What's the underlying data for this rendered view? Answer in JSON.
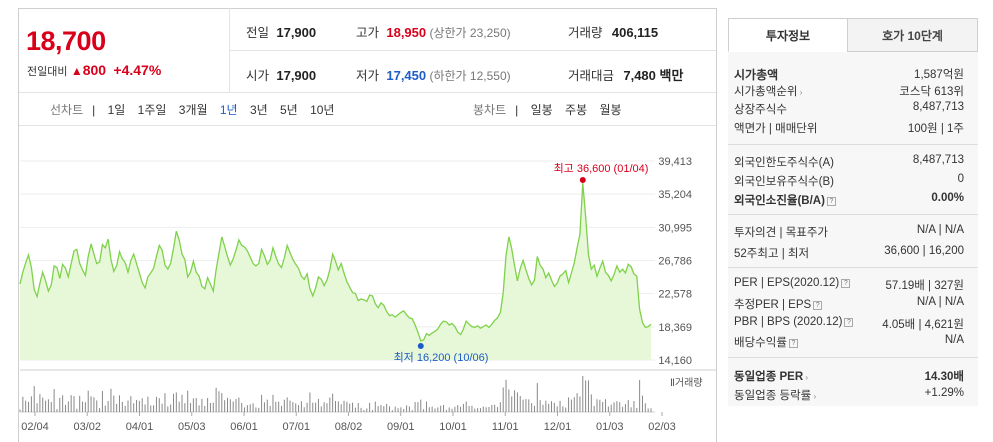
{
  "price": {
    "current": "18,700",
    "change_label": "전일대비",
    "change_arrow": "▲",
    "change": "800",
    "change_pct": "+4.47%"
  },
  "summary": {
    "prev_close_label": "전일",
    "prev_close": "17,900",
    "high_label": "고가",
    "high": "18,950",
    "high_limit": "(상한가 23,250)",
    "volume_label": "거래량",
    "volume": "406,115",
    "open_label": "시가",
    "open": "17,900",
    "low_label": "저가",
    "low": "17,450",
    "low_limit": "(하한가 12,550)",
    "amount_label": "거래대금",
    "amount": "7,480 백만"
  },
  "line_chart_nav": {
    "label": "선차트",
    "periods": [
      "1일",
      "1주일",
      "3개월",
      "1년",
      "3년",
      "5년",
      "10년"
    ],
    "selected": "1년"
  },
  "candle_chart_nav": {
    "label": "봉차트",
    "periods": [
      "일봉",
      "주봉",
      "월봉"
    ]
  },
  "tabs": {
    "info": "투자정보",
    "orderbook": "호가 10단계"
  },
  "info": {
    "market_cap_label": "시가총액",
    "market_cap": "1,587억원",
    "rank_label": "시가총액순위",
    "rank": "코스닥 613위",
    "shares_label": "상장주식수",
    "shares": "8,487,713",
    "facevalue_label": "액면가 | 매매단위",
    "facevalue": "100원 | 1주",
    "foreign_limit_label": "외국인한도주식수(A)",
    "foreign_limit": "8,487,713",
    "foreign_hold_label": "외국인보유주식수(B)",
    "foreign_hold": "0",
    "foreign_ratio_label": "외국인소진율(B/A)",
    "foreign_ratio": "0.00%",
    "opinion_label": "투자의견 | 목표주가",
    "opinion": "N/A | N/A",
    "week52_label": "52주최고 | 최저",
    "week52": "36,600 | 16,200",
    "per_label": "PER | EPS(2020.12)",
    "per": "57.19배 | 327원",
    "est_per_label": "추정PER | EPS",
    "est_per": "N/A | N/A",
    "pbr_label": "PBR | BPS (2020.12)",
    "pbr": "4.05배 | 4,621원",
    "div_label": "배당수익률",
    "div": "N/A",
    "sector_per_label": "동일업종 PER",
    "sector_per": "14.30배",
    "sector_rate_label": "동일업종 등락률",
    "sector_rate": "+1.29%"
  },
  "colors": {
    "up": "#d9001b",
    "down": "#1e5cc8",
    "line": "#7fd14a",
    "fill": "#e6f8d8"
  },
  "chart_data": {
    "type": "area",
    "yticks": [
      "39,413",
      "35,204",
      "30,995",
      "26,786",
      "22,578",
      "18,369",
      "14,160"
    ],
    "ylim": [
      14160,
      39413
    ],
    "xticks": [
      "02/04",
      "03/02",
      "04/01",
      "05/03",
      "06/01",
      "07/01",
      "08/02",
      "09/01",
      "10/01",
      "11/01",
      "12/01",
      "01/03",
      "02/03"
    ],
    "volume_label": "거래량",
    "max_annotation": "최고 36,600 (01/04)",
    "min_annotation": "최저 16,200 (10/06)",
    "series": [
      {
        "values": [
          23800,
          25300,
          26500,
          27500,
          25900,
          23100,
          22200,
          23900,
          25300,
          24200,
          22900,
          23700,
          26100,
          25900,
          24500,
          26300,
          25800,
          24700,
          26400,
          28000,
          28200,
          26400,
          25600,
          24900,
          27300,
          28900,
          27600,
          26400,
          26600,
          28800,
          28400,
          29500,
          26900,
          25400,
          26100,
          27900,
          27000,
          26500,
          25300,
          26800,
          27600,
          26400,
          25200,
          24000,
          23300,
          24700,
          25200,
          25800,
          27300,
          28700,
          28100,
          26200,
          25700,
          26400,
          28300,
          30500,
          29400,
          27600,
          26900,
          24700,
          25300,
          26700,
          25300,
          24800,
          23500,
          23200,
          24600,
          23800,
          22900,
          25600,
          27700,
          29800,
          28600,
          27300,
          26200,
          27000,
          28100,
          29400,
          28700,
          28500,
          28000,
          27200,
          26400,
          26100,
          26400,
          28200,
          27400,
          26300,
          26800,
          28400,
          27300,
          26300,
          25900,
          27100,
          28700,
          27800,
          26900,
          26300,
          25800,
          24800,
          24400,
          25100,
          23200,
          22300,
          23300,
          24700,
          24400,
          23600,
          24300,
          25600,
          27600,
          26700,
          25600,
          26400,
          25200,
          24100,
          23400,
          22700,
          22600,
          21700,
          21900,
          21800,
          21600,
          22400,
          22300,
          21300,
          20800,
          21400,
          21100,
          20300,
          19800,
          19900,
          19600,
          19900,
          20200,
          20400,
          19900,
          19500,
          19400,
          18600,
          17700,
          16600,
          16700,
          17500,
          17300,
          17600,
          17800,
          18100,
          18700,
          19100,
          19000,
          18600,
          18800,
          18400,
          17700,
          17400,
          18100,
          19100,
          18700,
          18400,
          18300,
          18500,
          18200,
          18400,
          18600,
          18300,
          18700,
          19200,
          19500,
          20200,
          22700,
          27400,
          29800,
          28300,
          26100,
          24200,
          25800,
          26800,
          25600,
          24500,
          23700,
          24300,
          27300,
          26200,
          25700,
          24600,
          25200,
          24300,
          23500,
          23900,
          24800,
          25100,
          25500,
          24000,
          25200,
          26500,
          28400,
          30100,
          36600,
          32400,
          27500,
          25700,
          26200,
          24800,
          25800,
          26700,
          25300,
          24900,
          24200,
          25000,
          26100,
          25300,
          25700,
          25200,
          26300,
          26000,
          25100,
          24800,
          20600,
          18900,
          18300,
          18400,
          18700
        ]
      }
    ]
  }
}
